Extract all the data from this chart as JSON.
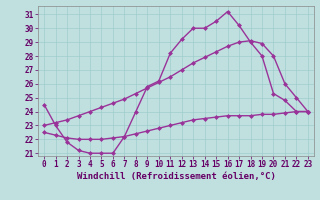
{
  "xlabel": "Windchill (Refroidissement éolien,°C)",
  "bg_color": "#c0e0e0",
  "grid_color": "#a0cccc",
  "line_color": "#993399",
  "xlim": [
    -0.5,
    23.5
  ],
  "ylim": [
    20.8,
    31.6
  ],
  "yticks": [
    21,
    22,
    23,
    24,
    25,
    26,
    27,
    28,
    29,
    30,
    31
  ],
  "xticks": [
    0,
    1,
    2,
    3,
    4,
    5,
    6,
    7,
    8,
    9,
    10,
    11,
    12,
    13,
    14,
    15,
    16,
    17,
    18,
    19,
    20,
    21,
    22,
    23
  ],
  "curve1_x": [
    0,
    1,
    2,
    3,
    4,
    5,
    6,
    7,
    8,
    9,
    10,
    11,
    12,
    13,
    14,
    15,
    16,
    17,
    18,
    19,
    20,
    21,
    22,
    23
  ],
  "curve1_y": [
    24.5,
    23.0,
    21.8,
    21.2,
    21.0,
    21.0,
    21.0,
    22.2,
    24.0,
    25.8,
    26.2,
    28.2,
    29.2,
    30.0,
    30.0,
    30.5,
    31.2,
    30.2,
    29.0,
    28.0,
    25.3,
    24.8,
    24.0,
    24.0
  ],
  "curve2_x": [
    0,
    1,
    2,
    3,
    4,
    5,
    6,
    7,
    8,
    9,
    10,
    11,
    12,
    13,
    14,
    15,
    16,
    17,
    18,
    19,
    20,
    21,
    22,
    23
  ],
  "curve2_y": [
    23.0,
    23.2,
    23.4,
    23.7,
    24.0,
    24.3,
    24.6,
    24.9,
    25.3,
    25.7,
    26.1,
    26.5,
    27.0,
    27.5,
    27.9,
    28.3,
    28.7,
    29.0,
    29.1,
    28.9,
    28.0,
    26.0,
    25.0,
    24.0
  ],
  "curve3_x": [
    0,
    1,
    2,
    3,
    4,
    5,
    6,
    7,
    8,
    9,
    10,
    11,
    12,
    13,
    14,
    15,
    16,
    17,
    18,
    19,
    20,
    21,
    22,
    23
  ],
  "curve3_y": [
    22.5,
    22.3,
    22.1,
    22.0,
    22.0,
    22.0,
    22.1,
    22.2,
    22.4,
    22.6,
    22.8,
    23.0,
    23.2,
    23.4,
    23.5,
    23.6,
    23.7,
    23.7,
    23.7,
    23.8,
    23.8,
    23.9,
    24.0,
    24.0
  ],
  "marker": "D",
  "markersize": 2.5,
  "linewidth": 1.0,
  "xlabel_fontsize": 6.5,
  "tick_fontsize": 5.5,
  "xlabel_color": "#660066",
  "tick_color": "#660066",
  "spine_color": "#888888"
}
